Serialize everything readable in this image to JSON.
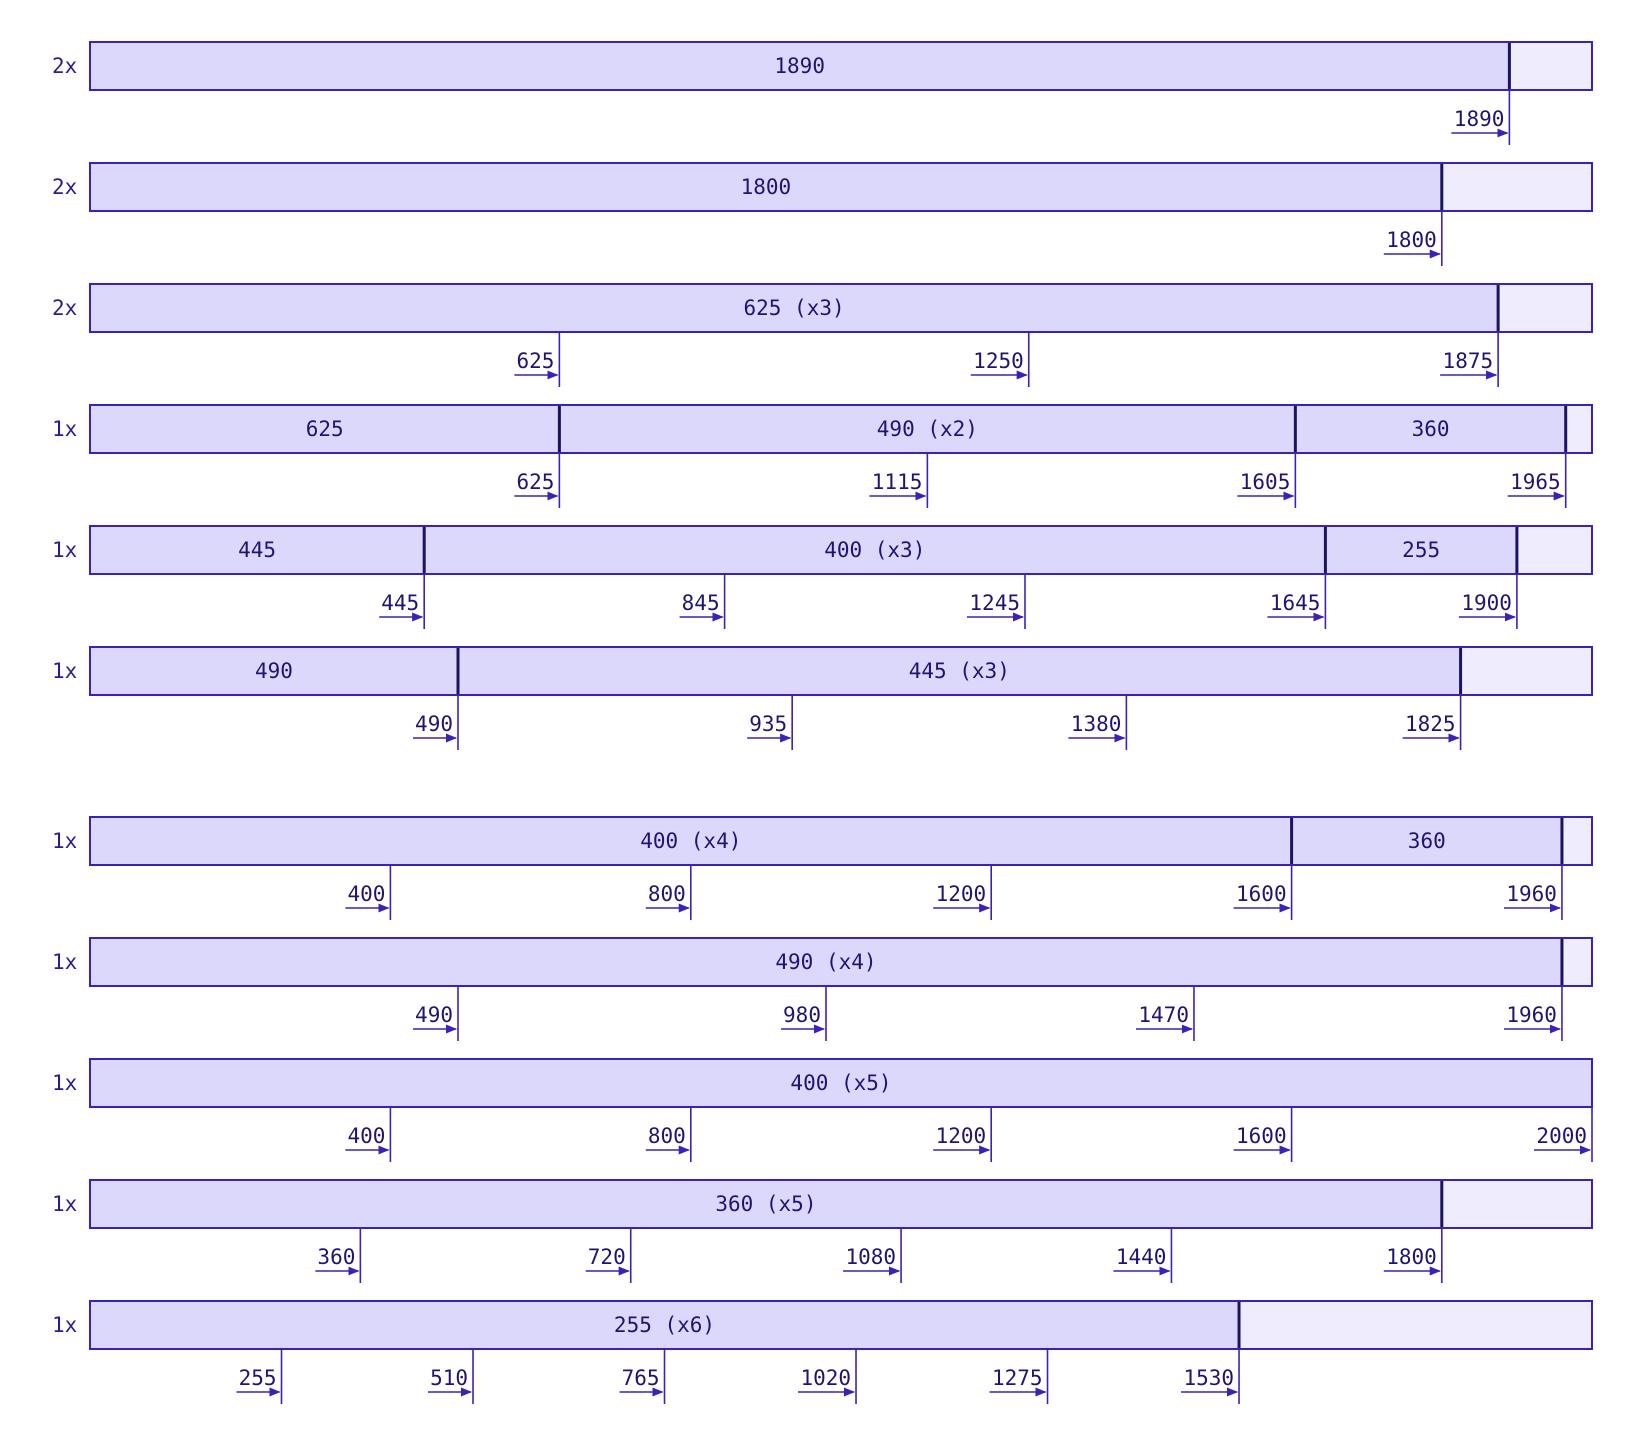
{
  "diagram": {
    "rows": [
      {
        "multiplier": "2x",
        "segments": [
          {
            "label": "1890",
            "start": 0,
            "end": 1890
          }
        ],
        "ticks": [
          1890
        ],
        "tick_labels": [
          "1890"
        ]
      },
      {
        "multiplier": "2x",
        "segments": [
          {
            "label": "1800",
            "start": 0,
            "end": 1800
          }
        ],
        "ticks": [
          1800
        ],
        "tick_labels": [
          "1800"
        ]
      },
      {
        "multiplier": "2x",
        "segments": [
          {
            "label": "625 (x3)",
            "start": 0,
            "end": 1875
          }
        ],
        "ticks": [
          625,
          1250,
          1875
        ],
        "tick_labels": [
          "625",
          "1250",
          "1875"
        ]
      },
      {
        "multiplier": "1x",
        "segments": [
          {
            "label": "625",
            "start": 0,
            "end": 625
          },
          {
            "label": "490 (x2)",
            "start": 625,
            "end": 1605
          },
          {
            "label": "360",
            "start": 1605,
            "end": 1965
          }
        ],
        "ticks": [
          625,
          1115,
          1605,
          1965
        ],
        "tick_labels": [
          "625",
          "1115",
          "1605",
          "1965"
        ]
      },
      {
        "multiplier": "1x",
        "segments": [
          {
            "label": "445",
            "start": 0,
            "end": 445
          },
          {
            "label": "400 (x3)",
            "start": 445,
            "end": 1645
          },
          {
            "label": "255",
            "start": 1645,
            "end": 1900
          }
        ],
        "ticks": [
          445,
          845,
          1245,
          1645,
          1900
        ],
        "tick_labels": [
          "445",
          "845",
          "1245",
          "1645",
          "1900"
        ]
      },
      {
        "multiplier": "1x",
        "segments": [
          {
            "label": "490",
            "start": 0,
            "end": 490
          },
          {
            "label": "445 (x3)",
            "start": 490,
            "end": 1825
          }
        ],
        "ticks": [
          490,
          935,
          1380,
          1825
        ],
        "tick_labels": [
          "490",
          "935",
          "1380",
          "1825"
        ]
      },
      {
        "multiplier": "1x",
        "segments": [
          {
            "label": "400 (x4)",
            "start": 0,
            "end": 1600
          },
          {
            "label": "360",
            "start": 1600,
            "end": 1960
          }
        ],
        "ticks": [
          400,
          800,
          1200,
          1600,
          1960
        ],
        "tick_labels": [
          "400",
          "800",
          "1200",
          "1600",
          "1960"
        ]
      },
      {
        "multiplier": "1x",
        "segments": [
          {
            "label": "490 (x4)",
            "start": 0,
            "end": 1960
          }
        ],
        "ticks": [
          490,
          980,
          1470,
          1960
        ],
        "tick_labels": [
          "490",
          "980",
          "1470",
          "1960"
        ]
      },
      {
        "multiplier": "1x",
        "segments": [
          {
            "label": "400 (x5)",
            "start": 0,
            "end": 2000
          }
        ],
        "ticks": [
          400,
          800,
          1200,
          1600,
          2000
        ],
        "tick_labels": [
          "400",
          "800",
          "1200",
          "1600",
          "2000"
        ]
      },
      {
        "multiplier": "1x",
        "segments": [
          {
            "label": "360 (x5)",
            "start": 0,
            "end": 1800
          }
        ],
        "ticks": [
          360,
          720,
          1080,
          1440,
          1800
        ],
        "tick_labels": [
          "360",
          "720",
          "1080",
          "1440",
          "1800"
        ]
      },
      {
        "multiplier": "1x",
        "segments": [
          {
            "label": "255 (x6)",
            "start": 0,
            "end": 1530
          }
        ],
        "ticks": [
          255,
          510,
          765,
          1020,
          1275,
          1530
        ],
        "tick_labels": [
          "255",
          "510",
          "765",
          "1020",
          "1275",
          "1530"
        ]
      }
    ],
    "total": 2000,
    "colors": {
      "stroke": "#3a22b8",
      "fill": "#dcd8fb",
      "empty_fill": "#efedfd",
      "divider": "#1a1460",
      "text": "#1f1470"
    }
  }
}
